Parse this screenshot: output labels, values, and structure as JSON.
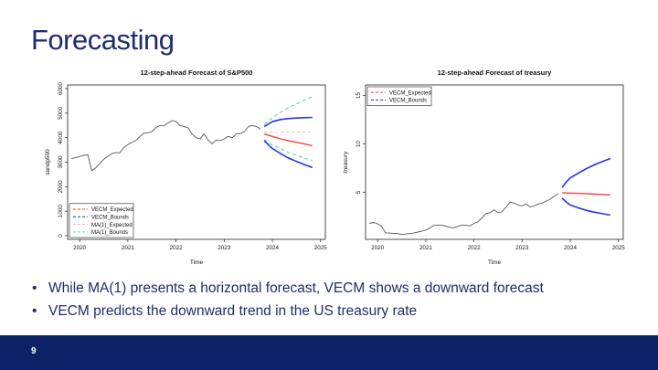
{
  "slide": {
    "title": "Forecasting",
    "page_number": "9",
    "bullets": [
      "While MA(1) presents a horizontal forecast, VECM shows a downward forecast",
      "VECM predicts the downward trend in the US treasury rate"
    ]
  },
  "colors": {
    "title": "#1f2d70",
    "footer": "#0c2266",
    "history": "#555555",
    "vecm_expected": "#ff3b3b",
    "vecm_bounds": "#2233ee",
    "ma_expected": "#ffb3b3",
    "ma_bounds": "#66d4c4"
  },
  "chart_data": [
    {
      "type": "line",
      "title": "12-step-ahead Forecast of S&P500",
      "xlabel": "Time",
      "ylabel": "sandp500",
      "xlim": [
        2019.75,
        2025.1
      ],
      "ylim": [
        -150,
        6150
      ],
      "xticks": [
        2020,
        2021,
        2022,
        2023,
        2024,
        2025
      ],
      "yticks": [
        0,
        1000,
        2000,
        3000,
        4000,
        5000,
        6000
      ],
      "legend_position": "bottom-left",
      "legend": [
        "VECM_Expected",
        "VECM_Bounds",
        "MA(1)_Expected",
        "MA(1)_Bounds"
      ],
      "series": [
        {
          "role": "history",
          "x": [
            2019.83,
            2020.0,
            2020.08,
            2020.17,
            2020.25,
            2020.33,
            2020.42,
            2020.5,
            2020.58,
            2020.67,
            2020.75,
            2020.83,
            2020.92,
            2021.0,
            2021.08,
            2021.17,
            2021.25,
            2021.33,
            2021.42,
            2021.5,
            2021.58,
            2021.67,
            2021.75,
            2021.83,
            2021.92,
            2022.0,
            2022.08,
            2022.17,
            2022.25,
            2022.33,
            2022.42,
            2022.5,
            2022.58,
            2022.67,
            2022.75,
            2022.83,
            2022.92,
            2023.0,
            2023.08,
            2023.17,
            2023.25,
            2023.33,
            2023.42,
            2023.5,
            2023.58,
            2023.67,
            2023.75
          ],
          "y": [
            3140,
            3230,
            3280,
            3300,
            2650,
            2760,
            2950,
            3120,
            3230,
            3350,
            3390,
            3380,
            3600,
            3720,
            3800,
            3890,
            4050,
            4180,
            4200,
            4250,
            4400,
            4500,
            4480,
            4600,
            4700,
            4660,
            4500,
            4450,
            4400,
            4150,
            4000,
            3950,
            4150,
            3900,
            3750,
            3900,
            3880,
            3950,
            4050,
            4000,
            4150,
            4160,
            4250,
            4450,
            4500,
            4450,
            4350
          ]
        },
        {
          "name": "VECM_Expected",
          "role": "vecm_expected",
          "x": [
            2023.83,
            2024.0,
            2024.17,
            2024.33,
            2024.5,
            2024.67,
            2024.83
          ],
          "y": [
            4150,
            4050,
            3950,
            3880,
            3810,
            3740,
            3670
          ]
        },
        {
          "name": "VECM_Bounds",
          "role": "vecm_bounds_upper",
          "x": [
            2023.83,
            2023.92,
            2024.0,
            2024.17,
            2024.33,
            2024.5,
            2024.67,
            2024.83
          ],
          "y": [
            4450,
            4560,
            4650,
            4740,
            4780,
            4800,
            4815,
            4825
          ]
        },
        {
          "name": "VECM_Bounds",
          "role": "vecm_bounds_lower",
          "x": [
            2023.83,
            2023.92,
            2024.0,
            2024.17,
            2024.33,
            2024.5,
            2024.67,
            2024.83
          ],
          "y": [
            3880,
            3700,
            3560,
            3350,
            3170,
            3030,
            2900,
            2780
          ]
        },
        {
          "name": "MA(1)_Expected",
          "role": "ma_expected",
          "x": [
            2023.83,
            2024.83
          ],
          "y": [
            4230,
            4230
          ]
        },
        {
          "name": "MA(1)_Bounds",
          "role": "ma_bounds_upper",
          "x": [
            2023.83,
            2024.0,
            2024.17,
            2024.33,
            2024.5,
            2024.67,
            2024.83
          ],
          "y": [
            4550,
            4800,
            5030,
            5220,
            5380,
            5530,
            5680
          ]
        },
        {
          "name": "MA(1)_Bounds",
          "role": "ma_bounds_lower",
          "x": [
            2023.83,
            2024.0,
            2024.17,
            2024.33,
            2024.5,
            2024.67,
            2024.83
          ],
          "y": [
            3930,
            3700,
            3550,
            3400,
            3280,
            3170,
            3080
          ]
        }
      ]
    },
    {
      "type": "line",
      "title": "12-step-ahead Forecast of treasury",
      "xlabel": "Time",
      "ylabel": "treasury",
      "xlim": [
        2019.75,
        2025.1
      ],
      "ylim": [
        0.15,
        16.1
      ],
      "xticks": [
        2020,
        2021,
        2022,
        2023,
        2024,
        2025
      ],
      "yticks": [
        5,
        10,
        15
      ],
      "legend_position": "top-left",
      "legend": [
        "VECM_Expected",
        "VECM_Bounds"
      ],
      "series": [
        {
          "role": "history",
          "x": [
            2019.83,
            2019.92,
            2020.0,
            2020.08,
            2020.17,
            2020.25,
            2020.33,
            2020.42,
            2020.5,
            2020.58,
            2020.67,
            2020.75,
            2020.83,
            2020.92,
            2021.0,
            2021.08,
            2021.17,
            2021.25,
            2021.33,
            2021.42,
            2021.5,
            2021.58,
            2021.67,
            2021.75,
            2021.83,
            2021.92,
            2022.0,
            2022.08,
            2022.17,
            2022.25,
            2022.33,
            2022.42,
            2022.5,
            2022.58,
            2022.67,
            2022.75,
            2022.83,
            2022.92,
            2023.0,
            2023.08,
            2023.17,
            2023.25,
            2023.33,
            2023.42,
            2023.5,
            2023.58,
            2023.67,
            2023.75
          ],
          "y": [
            1.8,
            1.9,
            1.75,
            1.5,
            0.8,
            0.8,
            0.75,
            0.75,
            0.65,
            0.7,
            0.75,
            0.8,
            0.9,
            1.0,
            1.1,
            1.3,
            1.6,
            1.6,
            1.6,
            1.5,
            1.4,
            1.35,
            1.5,
            1.6,
            1.6,
            1.55,
            1.8,
            1.95,
            2.4,
            2.8,
            2.9,
            3.2,
            2.9,
            3.0,
            3.5,
            4.0,
            3.9,
            3.7,
            3.6,
            3.8,
            3.5,
            3.6,
            3.8,
            3.9,
            4.1,
            4.3,
            4.6,
            4.9
          ]
        },
        {
          "name": "VECM_Expected",
          "role": "vecm_expected",
          "x": [
            2023.83,
            2024.0,
            2024.17,
            2024.33,
            2024.5,
            2024.67,
            2024.83
          ],
          "y": [
            4.95,
            4.93,
            4.9,
            4.86,
            4.82,
            4.78,
            4.74
          ]
        },
        {
          "name": "VECM_Bounds",
          "role": "vecm_bounds_upper",
          "x": [
            2023.83,
            2023.92,
            2024.0,
            2024.17,
            2024.33,
            2024.5,
            2024.67,
            2024.83
          ],
          "y": [
            5.5,
            6.1,
            6.5,
            7.0,
            7.45,
            7.85,
            8.2,
            8.5
          ]
        },
        {
          "name": "VECM_Bounds",
          "role": "vecm_bounds_lower",
          "x": [
            2023.83,
            2023.92,
            2024.0,
            2024.17,
            2024.33,
            2024.5,
            2024.67,
            2024.83
          ],
          "y": [
            4.4,
            4.0,
            3.7,
            3.4,
            3.15,
            2.95,
            2.8,
            2.65
          ]
        }
      ]
    }
  ]
}
